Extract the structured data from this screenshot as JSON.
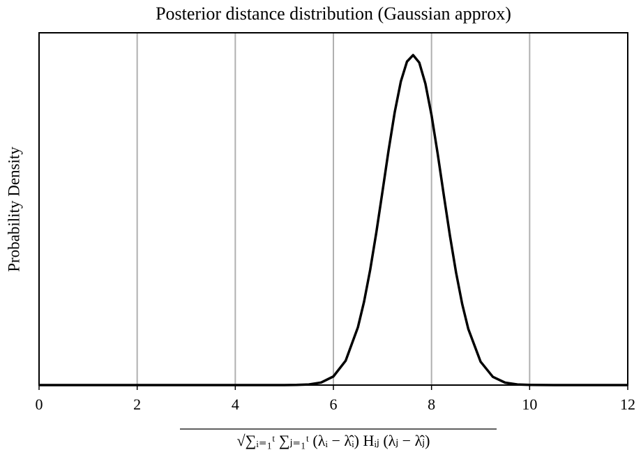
{
  "chart_data": {
    "type": "line",
    "title": "Posterior distance distribution (Gaussian approx)",
    "x_label": "√∑ᵢ₌₁ᵗ ∑ⱼ₌₁ᵗ (λᵢ − λ̂ᵢ) Hᵢⱼ (λⱼ − λ̂ⱼ)",
    "y_label": "Probability Density",
    "x": [
      0,
      0.5,
      1,
      1.5,
      2,
      2.5,
      3,
      3.5,
      4,
      4.5,
      5,
      5.25,
      5.5,
      5.75,
      6,
      6.25,
      6.5,
      6.625,
      6.75,
      6.875,
      7,
      7.125,
      7.25,
      7.375,
      7.5,
      7.625,
      7.75,
      7.875,
      8,
      8.125,
      8.25,
      8.375,
      8.5,
      8.625,
      8.75,
      9,
      9.25,
      9.5,
      9.75,
      10,
      10.5,
      11,
      11.5,
      12
    ],
    "series": [
      {
        "name": "density",
        "color": "#000000",
        "values": [
          0,
          0,
          0,
          0,
          0,
          0,
          0,
          0,
          0,
          0,
          0,
          0.0003,
          0.0013,
          0.0052,
          0.0174,
          0.0491,
          0.1166,
          0.1681,
          0.2324,
          0.3076,
          0.3898,
          0.4732,
          0.55,
          0.612,
          0.652,
          0.665,
          0.65,
          0.6076,
          0.544,
          0.4666,
          0.383,
          0.3013,
          0.227,
          0.1635,
          0.113,
          0.0472,
          0.0166,
          0.0049,
          0.0012,
          0.0003,
          0,
          0,
          0,
          0
        ]
      }
    ],
    "xlim": [
      0,
      12
    ],
    "xticks": [
      0,
      2,
      4,
      6,
      8,
      10,
      12
    ],
    "ylim": [
      0,
      0.71
    ],
    "grid": true
  }
}
